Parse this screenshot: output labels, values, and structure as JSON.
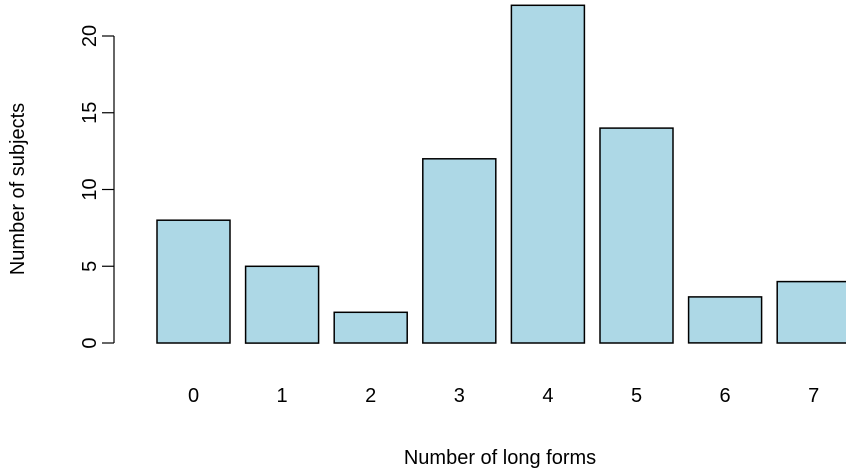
{
  "chart_data": {
    "type": "bar",
    "categories": [
      "0",
      "1",
      "2",
      "3",
      "4",
      "5",
      "6",
      "7"
    ],
    "values": [
      8,
      5,
      2,
      12,
      22,
      14,
      3,
      4
    ],
    "xlabel": "Number of long forms",
    "ylabel": "Number of subjects",
    "ylim": [
      0,
      22
    ],
    "yticks": [
      "0",
      "5",
      "10",
      "15",
      "20"
    ],
    "ytick_values": [
      0,
      5,
      10,
      15,
      20
    ],
    "grid": false,
    "bar_color": "#add8e6",
    "bar_edge_color": "#000000"
  }
}
